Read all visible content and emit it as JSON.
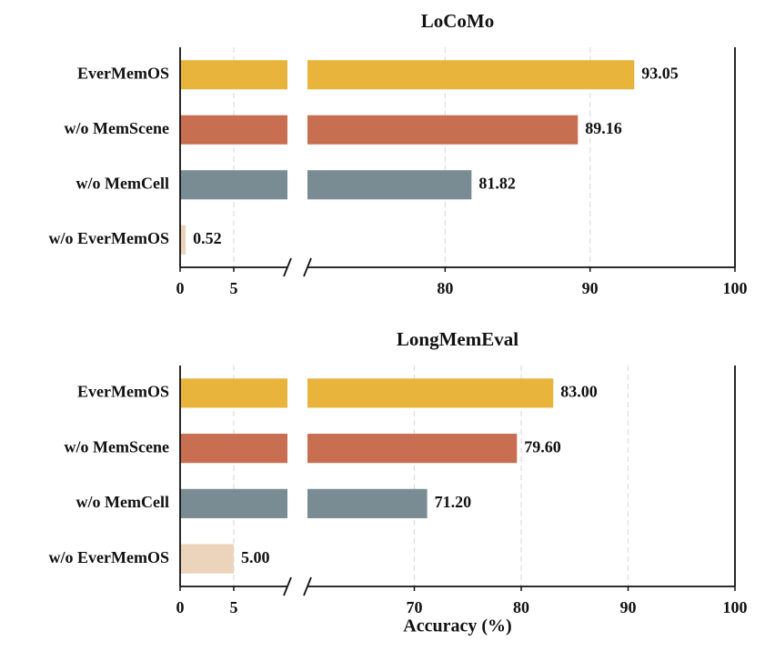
{
  "chart_data": [
    {
      "type": "barh",
      "title": "LoCoMo",
      "categories": [
        "EverMemOS",
        "w/o MemScene",
        "w/o MemCell",
        "w/o EverMemOS"
      ],
      "values": [
        93.05,
        89.16,
        81.82,
        0.52
      ],
      "value_labels": [
        "93.05",
        "89.16",
        "81.82",
        "0.52"
      ],
      "colors": [
        "#e8b43c",
        "#c86f52",
        "#7a8c93",
        "#ecd3bb"
      ],
      "xlim": [
        0,
        100
      ],
      "xbreak": [
        10,
        70.5
      ],
      "xticks": [
        0,
        5,
        80,
        90,
        100
      ],
      "grid": true
    },
    {
      "type": "barh",
      "title": "LongMemEval",
      "categories": [
        "EverMemOS",
        "w/o MemScene",
        "w/o MemCell",
        "w/o EverMemOS"
      ],
      "values": [
        83.0,
        79.6,
        71.2,
        5.0
      ],
      "value_labels": [
        "83.00",
        "79.60",
        "71.20",
        "5.00"
      ],
      "colors": [
        "#e8b43c",
        "#c86f52",
        "#7a8c93",
        "#ecd3bb"
      ],
      "xlim": [
        0,
        100
      ],
      "xbreak": [
        10,
        60
      ],
      "xticks": [
        0,
        5,
        70,
        80,
        90,
        100
      ],
      "grid": true,
      "xlabel": "Accuracy (%)"
    }
  ]
}
